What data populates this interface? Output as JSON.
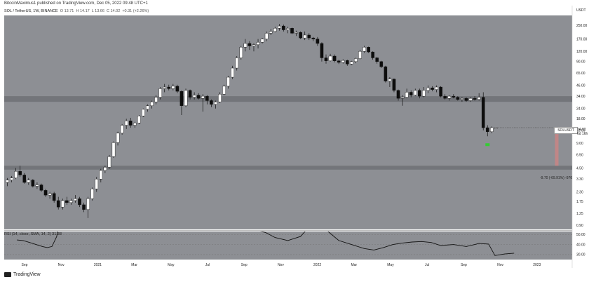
{
  "header": {
    "publisher": "BitcoinMaximus1 published on TradingView.com, Dec 05, 2022 09:48 UTC+1"
  },
  "legend": {
    "symbol": "SOL / TetherUS, 1W, BINANCE",
    "o": "O 13.71",
    "h": "H 14.17",
    "l": "L 13.66",
    "c": "C 14.02",
    "chg": "+0.31 (+2.26%)"
  },
  "rsi_label": "RSI (14, close, SMA, 14, 2)  31.38",
  "price_label": {
    "symbol": "SOLUSDT",
    "price": "14.02",
    "countdown": "6d 16h"
  },
  "measure_text": "-9.70 (-69.91%) -970",
  "brand": "TradingView",
  "currency": "USDT",
  "colors": {
    "bg": "#8d8f94",
    "up": "#ffffff",
    "down": "#0d0d0d",
    "zone": "#6f7176",
    "measure": "#c98585",
    "rsi_line": "#111111",
    "marker": "#33cc33"
  },
  "chart_data": {
    "type": "candlestick",
    "y_scale": "log",
    "yticks": [
      250,
      170,
      120,
      90,
      65,
      46,
      34,
      24,
      18,
      13,
      9,
      6.5,
      4.5,
      3.3,
      2.3,
      1.75,
      1.25,
      0.9
    ],
    "yticks_labels": [
      "250.00",
      "170.00",
      "120.00",
      "90.00",
      "65.00",
      "46.00",
      "34.00",
      "24.00",
      "18.00",
      "13.00",
      "9.00",
      "6.50",
      "4.50",
      "3.30",
      "2.30",
      "1.75",
      "1.25",
      "0.90"
    ],
    "xticks": [
      "Sep",
      "Nov",
      "2021",
      "Mar",
      "May",
      "Jul",
      "Sep",
      "Nov",
      "2022",
      "Mar",
      "May",
      "Jul",
      "Sep",
      "Nov",
      "2023"
    ],
    "zones": [
      {
        "low": 29,
        "high": 34
      },
      {
        "low": 4.3,
        "high": 4.8
      }
    ],
    "candles": [
      [
        3.0,
        3.4,
        2.7,
        3.2
      ],
      [
        3.2,
        3.6,
        3.0,
        3.4
      ],
      [
        3.4,
        4.5,
        3.3,
        4.1
      ],
      [
        4.1,
        4.8,
        3.5,
        3.7
      ],
      [
        3.7,
        3.9,
        2.9,
        3.0
      ],
      [
        3.0,
        3.4,
        2.8,
        3.2
      ],
      [
        3.2,
        3.3,
        2.6,
        2.7
      ],
      [
        2.7,
        3.0,
        2.5,
        2.8
      ],
      [
        2.8,
        2.9,
        2.3,
        2.4
      ],
      [
        2.4,
        2.5,
        2.0,
        2.1
      ],
      [
        2.1,
        2.3,
        1.9,
        2.2
      ],
      [
        2.2,
        2.3,
        1.7,
        1.8
      ],
      [
        1.8,
        2.0,
        1.4,
        1.5
      ],
      [
        1.5,
        1.9,
        1.4,
        1.8
      ],
      [
        1.8,
        2.0,
        1.6,
        1.7
      ],
      [
        1.7,
        1.9,
        1.6,
        1.8
      ],
      [
        1.8,
        2.1,
        1.7,
        1.9
      ],
      [
        1.9,
        2.0,
        1.5,
        1.6
      ],
      [
        1.6,
        1.7,
        1.3,
        1.4
      ],
      [
        1.4,
        2.0,
        1.1,
        1.9
      ],
      [
        1.9,
        2.6,
        1.8,
        2.5
      ],
      [
        2.5,
        3.5,
        2.3,
        3.3
      ],
      [
        3.3,
        4.4,
        3.0,
        4.2
      ],
      [
        4.2,
        4.8,
        3.9,
        4.6
      ],
      [
        4.6,
        6.5,
        4.4,
        6.2
      ],
      [
        6.2,
        9.5,
        6.0,
        9.2
      ],
      [
        9.2,
        12.5,
        8.5,
        12.0
      ],
      [
        12.0,
        15.5,
        11.5,
        15.0
      ],
      [
        15.0,
        18.0,
        13.5,
        17.0
      ],
      [
        17.0,
        18.5,
        14.0,
        15.0
      ],
      [
        15.0,
        16.5,
        14.0,
        16.0
      ],
      [
        16.0,
        20.0,
        15.5,
        19.5
      ],
      [
        19.5,
        24.0,
        19.0,
        23.5
      ],
      [
        23.5,
        27.0,
        22.0,
        26.0
      ],
      [
        26.0,
        30.0,
        24.0,
        29.0
      ],
      [
        29.0,
        35.0,
        27.0,
        33.0
      ],
      [
        33.0,
        44.0,
        31.0,
        42.0
      ],
      [
        42.0,
        48.0,
        38.0,
        44.0
      ],
      [
        44.0,
        47.0,
        40.0,
        42.0
      ],
      [
        42.0,
        48.0,
        40.0,
        45.0
      ],
      [
        45.0,
        47.0,
        37.0,
        39.0
      ],
      [
        39.0,
        40.0,
        20.0,
        26.0
      ],
      [
        26.0,
        42.0,
        25.0,
        40.0
      ],
      [
        40.0,
        41.0,
        31.0,
        33.0
      ],
      [
        33.0,
        38.0,
        31.0,
        35.0
      ],
      [
        35.0,
        37.0,
        31.0,
        32.0
      ],
      [
        32.0,
        36.0,
        22.0,
        34.0
      ],
      [
        34.0,
        35.0,
        27.0,
        30.0
      ],
      [
        30.0,
        31.0,
        25.0,
        27.0
      ],
      [
        27.0,
        30.0,
        24.0,
        29.0
      ],
      [
        29.0,
        38.0,
        28.0,
        36.0
      ],
      [
        36.0,
        47.0,
        35.0,
        45.0
      ],
      [
        45.0,
        60.0,
        42.0,
        58.0
      ],
      [
        58.0,
        80.0,
        55.0,
        75.0
      ],
      [
        75.0,
        105.0,
        70.0,
        100.0
      ],
      [
        100.0,
        140.0,
        95.0,
        135.0
      ],
      [
        135.0,
        170.0,
        120.0,
        150.0
      ],
      [
        150.0,
        160.0,
        125.0,
        140.0
      ],
      [
        140.0,
        150.0,
        120.0,
        145.0
      ],
      [
        145.0,
        170.0,
        130.0,
        155.0
      ],
      [
        155.0,
        175.0,
        150.0,
        170.0
      ],
      [
        170.0,
        210.0,
        160.0,
        200.0
      ],
      [
        200.0,
        225.0,
        190.0,
        210.0
      ],
      [
        210.0,
        240.0,
        205.0,
        230.0
      ],
      [
        230.0,
        260.0,
        215.0,
        245.0
      ],
      [
        245.0,
        255.0,
        210.0,
        220.0
      ],
      [
        220.0,
        240.0,
        200.0,
        230.0
      ],
      [
        230.0,
        235.0,
        195.0,
        200.0
      ],
      [
        200.0,
        215.0,
        185.0,
        205.0
      ],
      [
        205.0,
        210.0,
        170.0,
        175.0
      ],
      [
        175.0,
        210.0,
        165.0,
        190.0
      ],
      [
        190.0,
        200.0,
        165.0,
        175.0
      ],
      [
        175.0,
        180.0,
        160.0,
        170.0
      ],
      [
        170.0,
        180.0,
        140.0,
        150.0
      ],
      [
        150.0,
        155.0,
        90.0,
        100.0
      ],
      [
        100.0,
        110.0,
        85.0,
        92.0
      ],
      [
        92.0,
        112.0,
        90.0,
        105.0
      ],
      [
        105.0,
        110.0,
        88.0,
        92.0
      ],
      [
        92.0,
        95.0,
        84.0,
        88.0
      ],
      [
        88.0,
        96.0,
        85.0,
        93.0
      ],
      [
        93.0,
        95.0,
        80.0,
        84.0
      ],
      [
        84.0,
        92.0,
        82.0,
        90.0
      ],
      [
        90.0,
        100.0,
        86.0,
        98.0
      ],
      [
        98.0,
        125.0,
        96.0,
        120.0
      ],
      [
        120.0,
        140.0,
        115.0,
        135.0
      ],
      [
        135.0,
        137.0,
        115.0,
        118.0
      ],
      [
        118.0,
        120.0,
        95.0,
        100.0
      ],
      [
        100.0,
        102.0,
        85.0,
        90.0
      ],
      [
        90.0,
        92.0,
        75.0,
        78.0
      ],
      [
        78.0,
        80.0,
        50.0,
        52.0
      ],
      [
        52.0,
        58.0,
        44.0,
        55.0
      ],
      [
        55.0,
        56.0,
        38.0,
        40.0
      ],
      [
        40.0,
        41.0,
        30.0,
        32.0
      ],
      [
        32.0,
        35.0,
        26.0,
        33.0
      ],
      [
        33.0,
        42.0,
        32.0,
        38.0
      ],
      [
        38.0,
        40.0,
        33.0,
        35.0
      ],
      [
        35.0,
        42.0,
        34.0,
        40.0
      ],
      [
        40.0,
        42.0,
        32.0,
        34.0
      ],
      [
        34.0,
        44.0,
        33.0,
        40.0
      ],
      [
        40.0,
        46.0,
        37.0,
        43.0
      ],
      [
        43.0,
        45.0,
        39.0,
        41.0
      ],
      [
        41.0,
        46.0,
        38.0,
        44.0
      ],
      [
        44.0,
        45.0,
        33.0,
        34.0
      ],
      [
        34.0,
        36.0,
        31.0,
        32.0
      ],
      [
        32.0,
        35.0,
        30.0,
        34.0
      ],
      [
        34.0,
        36.0,
        32.0,
        33.0
      ],
      [
        33.0,
        34.0,
        30.0,
        31.0
      ],
      [
        31.0,
        33.0,
        29.0,
        32.0
      ],
      [
        32.0,
        33.0,
        29.0,
        30.0
      ],
      [
        30.0,
        33.0,
        29.0,
        32.0
      ],
      [
        32.0,
        34.0,
        30.0,
        31.0
      ],
      [
        31.0,
        37.0,
        30.0,
        33.0
      ],
      [
        33.0,
        38.0,
        13.0,
        14.0
      ],
      [
        14.0,
        15.0,
        11.0,
        12.5
      ],
      [
        12.5,
        14.5,
        12.0,
        14.0
      ],
      [
        13.71,
        14.17,
        13.66,
        14.02
      ]
    ],
    "rsi": [
      [
        0.3,
        44.5
      ],
      [
        0.5,
        44.0
      ],
      [
        0.7,
        42.0
      ],
      [
        0.9,
        40.0
      ],
      [
        1.1,
        38.0
      ],
      [
        1.25,
        37.0
      ],
      [
        1.4,
        38.0
      ],
      [
        1.55,
        48.0
      ],
      [
        1.68,
        72.0
      ],
      [
        2.2,
        74.0
      ],
      [
        2.6,
        65.0
      ],
      [
        2.9,
        70.0
      ],
      [
        3.2,
        69.0
      ],
      [
        3.7,
        71.0
      ],
      [
        4.1,
        68.0
      ],
      [
        4.6,
        76.0
      ],
      [
        5.1,
        80.0
      ],
      [
        5.6,
        83.0
      ],
      [
        6.3,
        79.0
      ],
      [
        6.8,
        80.0
      ],
      [
        7.3,
        70.0
      ],
      [
        7.7,
        55.0
      ],
      [
        8.1,
        52.0
      ],
      [
        8.4,
        47.0
      ],
      [
        8.8,
        44.0
      ],
      [
        9.2,
        48.0
      ],
      [
        9.6,
        62.0
      ],
      [
        9.9,
        58.0
      ],
      [
        10.1,
        52.0
      ],
      [
        10.4,
        44.0
      ],
      [
        10.8,
        40.0
      ],
      [
        11.2,
        36.0
      ],
      [
        11.5,
        34.5
      ],
      [
        11.8,
        37.0
      ],
      [
        12.1,
        40.0
      ],
      [
        12.4,
        41.5
      ],
      [
        12.7,
        42.5
      ],
      [
        13.0,
        43.0
      ],
      [
        13.3,
        42.0
      ],
      [
        13.6,
        39.0
      ],
      [
        14.0,
        40.0
      ],
      [
        14.4,
        38.0
      ],
      [
        14.8,
        41.0
      ],
      [
        15.1,
        40.5
      ],
      [
        15.3,
        29.0
      ],
      [
        15.6,
        30.5
      ],
      [
        15.9,
        31.4
      ]
    ],
    "rsi_yticks": [
      50,
      40,
      30
    ],
    "rsi_yticks_labels": [
      "50.00",
      "40.00",
      "30.00"
    ]
  }
}
